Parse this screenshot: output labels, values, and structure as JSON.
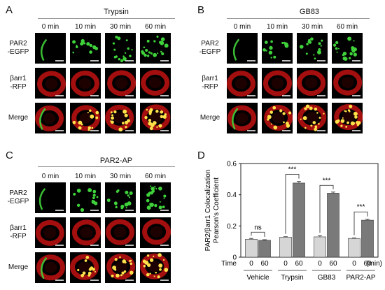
{
  "panels": {
    "A": {
      "letter": "A",
      "condition": "Trypsin"
    },
    "B": {
      "letter": "B",
      "condition": "GB83"
    },
    "C": {
      "letter": "C",
      "condition": "PAR2-AP"
    },
    "D": {
      "letter": "D"
    }
  },
  "time_labels": [
    "0 min",
    "10 min",
    "30 min",
    "60 min"
  ],
  "row_labels": {
    "par2": [
      "PAR2",
      "-EGFP"
    ],
    "barr": [
      "βarr1",
      "-RFP"
    ],
    "merge": [
      "Merge"
    ]
  },
  "chart_data": {
    "type": "bar",
    "ylabel_lines": [
      "PAR2/βarr1 Colocalization",
      "Pearson's Coefficient"
    ],
    "ylim": [
      0,
      0.6
    ],
    "yticks": [
      "0",
      "0.2",
      "0.4",
      "0.6"
    ],
    "time_label": "Time",
    "time_unit": "(min)",
    "groups": [
      "Vehicle",
      "Trypsin",
      "GB83",
      "PAR2-AP"
    ],
    "bars": [
      {
        "group": "Vehicle",
        "time": "0",
        "value": 0.115,
        "err": 0.005
      },
      {
        "group": "Vehicle",
        "time": "60",
        "value": 0.108,
        "err": 0.004
      },
      {
        "group": "Trypsin",
        "time": "0",
        "value": 0.128,
        "err": 0.003
      },
      {
        "group": "Trypsin",
        "time": "60",
        "value": 0.475,
        "err": 0.01
      },
      {
        "group": "GB83",
        "time": "0",
        "value": 0.13,
        "err": 0.008
      },
      {
        "group": "GB83",
        "time": "60",
        "value": 0.41,
        "err": 0.007
      },
      {
        "group": "PAR2-AP",
        "time": "0",
        "value": 0.12,
        "err": 0.003
      },
      {
        "group": "PAR2-AP",
        "time": "60",
        "value": 0.237,
        "err": 0.006
      }
    ],
    "comparisons": [
      {
        "group": "Vehicle",
        "label": "ns",
        "y": 0.16
      },
      {
        "group": "Trypsin",
        "label": "***",
        "y": 0.53
      },
      {
        "group": "GB83",
        "label": "***",
        "y": 0.46
      },
      {
        "group": "PAR2-AP",
        "label": "***",
        "y": 0.29
      }
    ],
    "colors": {
      "light": "#d6d6d6",
      "dark": "#7a7a7a"
    }
  }
}
